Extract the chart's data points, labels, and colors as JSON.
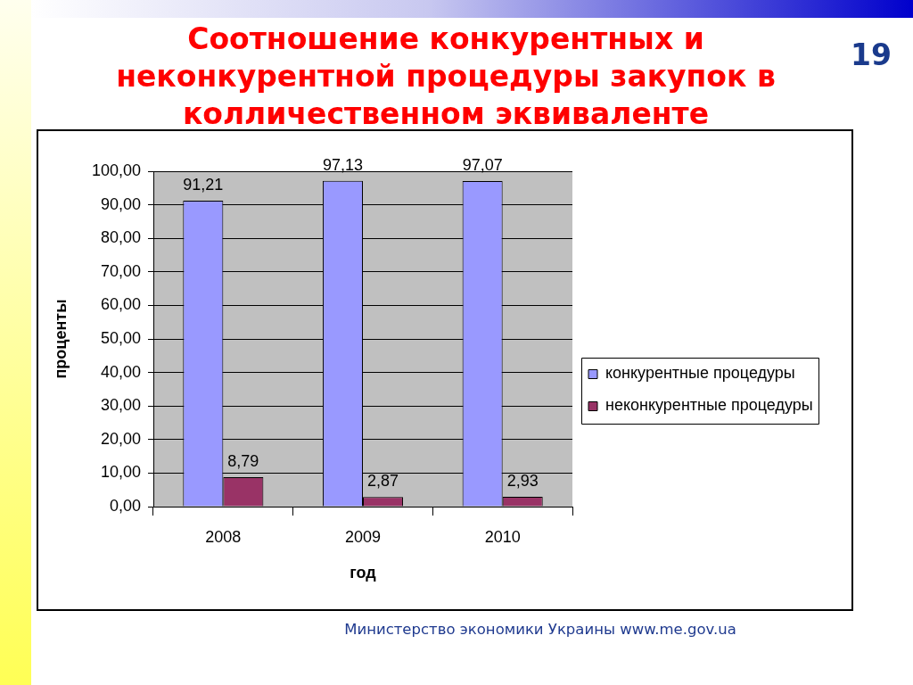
{
  "chart_data": {
    "type": "bar",
    "title": "Соотношение конкурентных и неконкурентной процедуры закупок в колличественном эквиваленте",
    "xlabel": "год",
    "ylabel": "проценты",
    "categories": [
      "2008",
      "2009",
      "2010"
    ],
    "series": [
      {
        "name": "конкурентные процедуры",
        "color": "#9999ff",
        "values": [
          91.21,
          97.13,
          97.07
        ],
        "value_labels": [
          "91,21",
          "97,13",
          "97,07"
        ]
      },
      {
        "name": "неконкурентные процедуры",
        "color": "#993366",
        "values": [
          8.79,
          2.87,
          2.93
        ],
        "value_labels": [
          "8,79",
          "2,87",
          "2,93"
        ]
      }
    ],
    "ylim": [
      0,
      100
    ],
    "yticks": [
      {
        "value": 0,
        "label": "0,00"
      },
      {
        "value": 10,
        "label": "10,00"
      },
      {
        "value": 20,
        "label": "20,00"
      },
      {
        "value": 30,
        "label": "30,00"
      },
      {
        "value": 40,
        "label": "40,00"
      },
      {
        "value": 50,
        "label": "50,00"
      },
      {
        "value": 60,
        "label": "60,00"
      },
      {
        "value": 70,
        "label": "70,00"
      },
      {
        "value": 80,
        "label": "80,00"
      },
      {
        "value": 90,
        "label": "90,00"
      },
      {
        "value": 100,
        "label": "100,00"
      }
    ],
    "grid": "y",
    "legend": "right",
    "annotations": [
      "19",
      "Министерство экономики Украины www.me.gov.ua"
    ]
  }
}
